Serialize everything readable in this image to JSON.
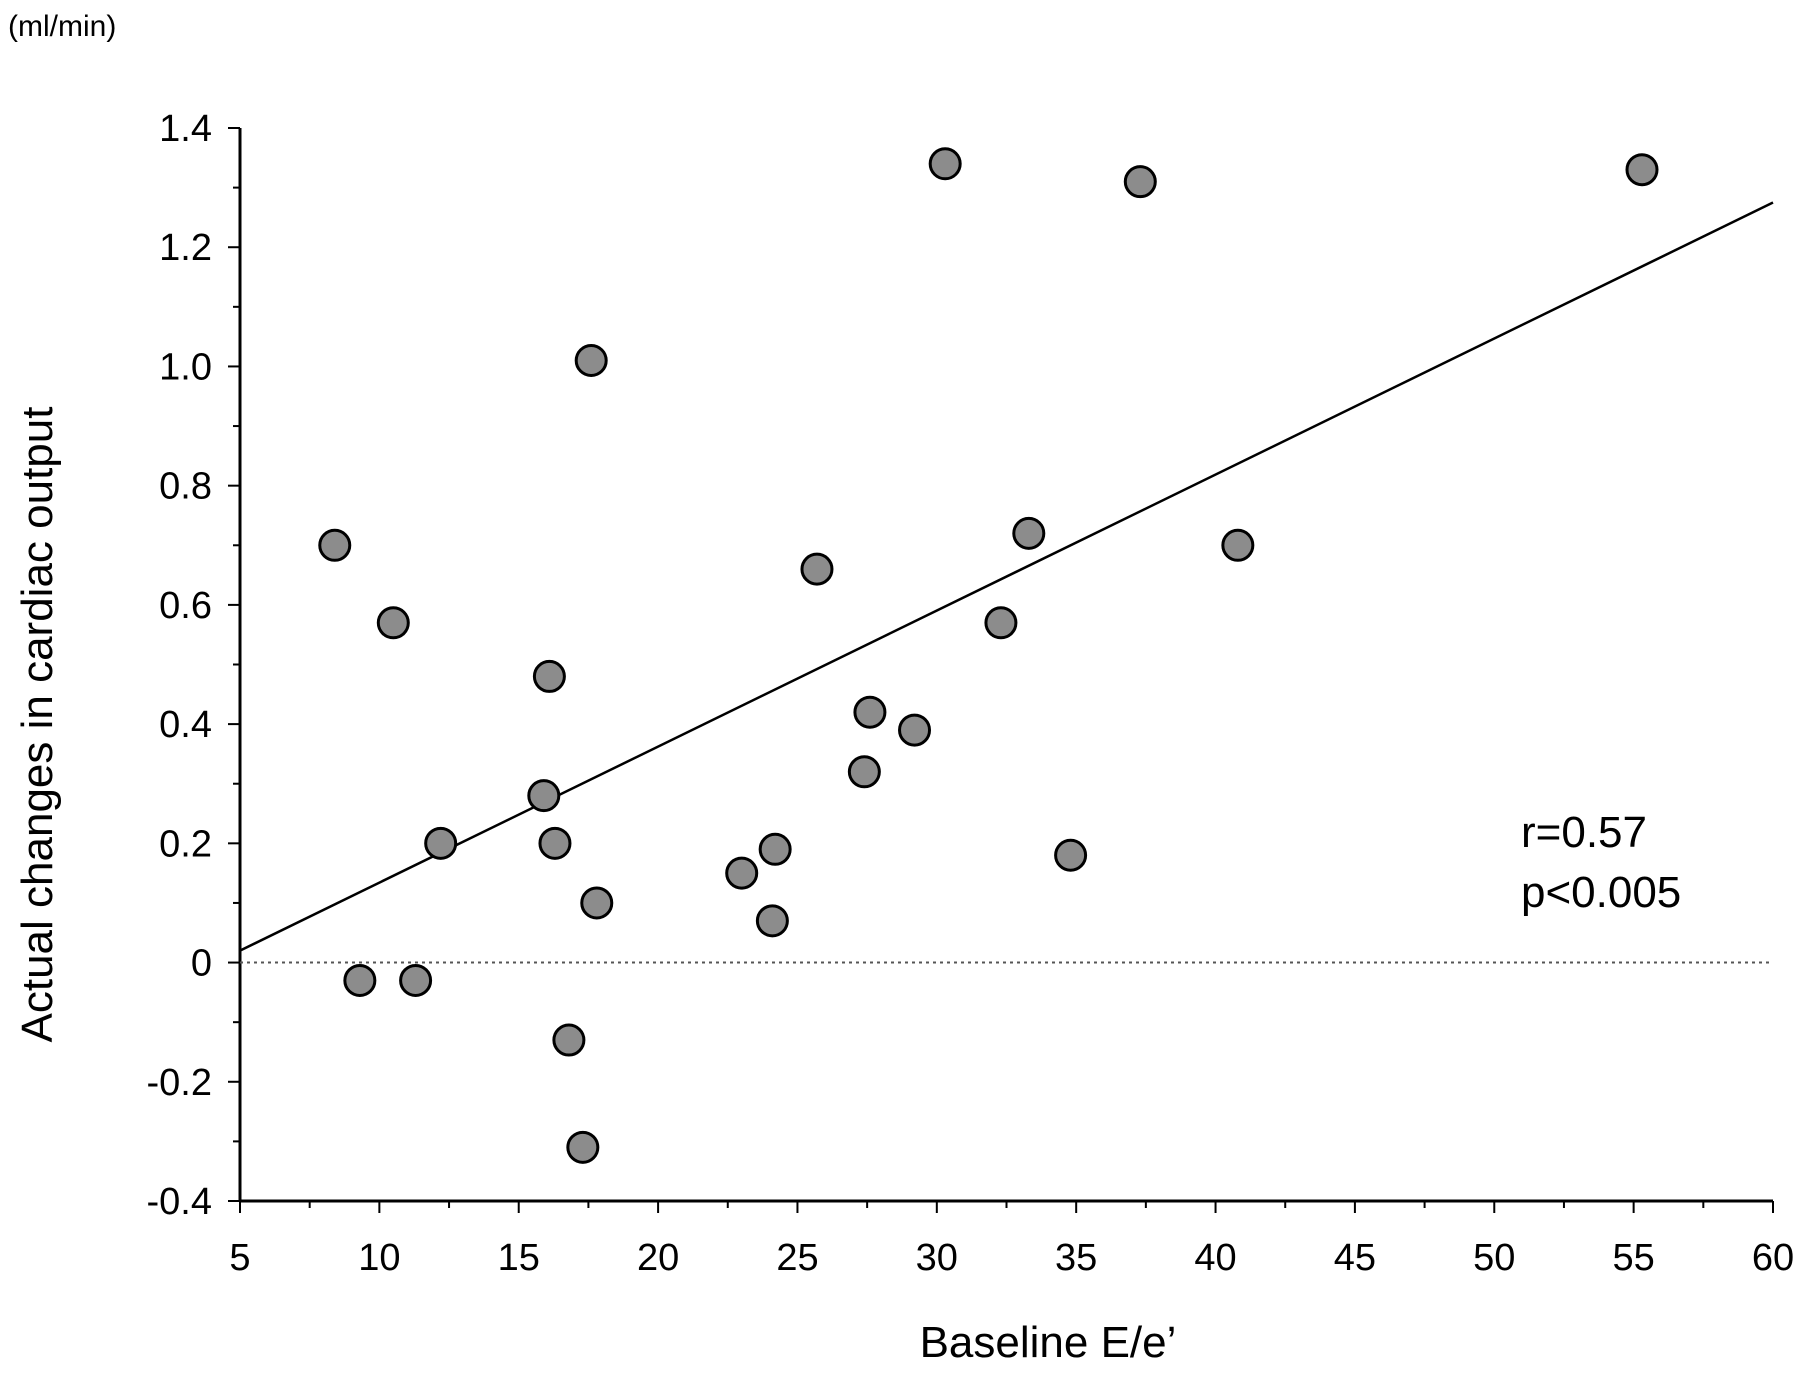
{
  "chart_data": {
    "type": "scatter",
    "title": "",
    "xlabel": "Baseline E/e’",
    "ylabel": "Actual changes in cardiac output",
    "yunit": "(ml/min)",
    "xlim": [
      5,
      60
    ],
    "ylim": [
      -0.4,
      1.4
    ],
    "xticks": [
      5,
      10,
      15,
      20,
      25,
      30,
      35,
      40,
      45,
      50,
      55,
      60
    ],
    "yticks": [
      -0.4,
      -0.2,
      0,
      0.2,
      0.4,
      0.6,
      0.8,
      1.0,
      1.2,
      1.4
    ],
    "ytick_labels": [
      "-0.4",
      "-0.2",
      "0",
      "0.2",
      "0.4",
      "0.6",
      "0.8",
      "1.0",
      "1.2",
      "1.4"
    ],
    "grid": false,
    "reference_line": {
      "y": 0,
      "style": "dotted"
    },
    "regression_line": {
      "x": [
        5,
        60
      ],
      "y": [
        0.02,
        1.275
      ]
    },
    "annotations": {
      "r": "r=0.57",
      "p": "p<0.005"
    },
    "marker_color": "#8c8c8c",
    "points": [
      {
        "x": 8.4,
        "y": 0.7
      },
      {
        "x": 9.3,
        "y": -0.03
      },
      {
        "x": 10.5,
        "y": 0.57
      },
      {
        "x": 11.3,
        "y": -0.03
      },
      {
        "x": 12.2,
        "y": 0.2
      },
      {
        "x": 15.9,
        "y": 0.28
      },
      {
        "x": 16.1,
        "y": 0.48
      },
      {
        "x": 16.3,
        "y": 0.2
      },
      {
        "x": 16.8,
        "y": -0.13
      },
      {
        "x": 17.3,
        "y": -0.31
      },
      {
        "x": 17.6,
        "y": 1.01
      },
      {
        "x": 17.8,
        "y": 0.1
      },
      {
        "x": 23.0,
        "y": 0.15
      },
      {
        "x": 24.1,
        "y": 0.07
      },
      {
        "x": 24.2,
        "y": 0.19
      },
      {
        "x": 25.7,
        "y": 0.66
      },
      {
        "x": 27.4,
        "y": 0.32
      },
      {
        "x": 27.6,
        "y": 0.42
      },
      {
        "x": 29.2,
        "y": 0.39
      },
      {
        "x": 30.3,
        "y": 1.34
      },
      {
        "x": 32.3,
        "y": 0.57
      },
      {
        "x": 33.3,
        "y": 0.72
      },
      {
        "x": 34.8,
        "y": 0.18
      },
      {
        "x": 37.3,
        "y": 1.31
      },
      {
        "x": 40.8,
        "y": 0.7
      },
      {
        "x": 55.3,
        "y": 1.33
      }
    ]
  }
}
